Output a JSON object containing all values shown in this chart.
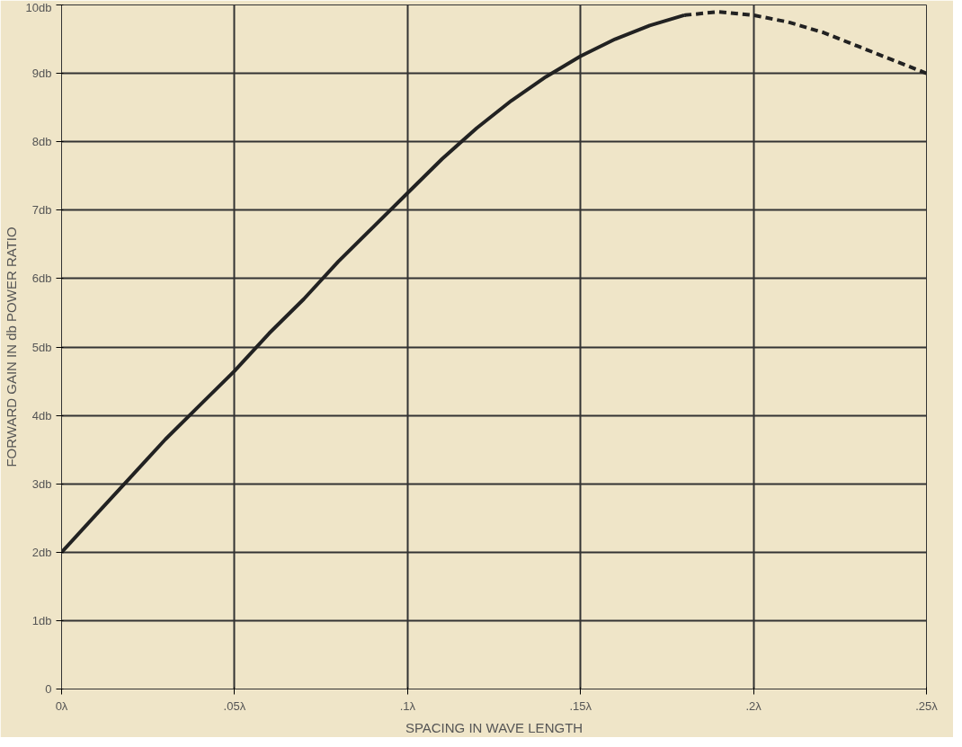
{
  "chart_data": {
    "type": "line",
    "xlabel": "SPACING IN WAVE LENGTH",
    "ylabel": "FORWARD GAIN IN db POWER RATIO",
    "xlim": [
      0,
      0.25
    ],
    "ylim": [
      0,
      10
    ],
    "xticks": [
      {
        "value": 0,
        "label": "0λ"
      },
      {
        "value": 0.05,
        "label": ".05λ"
      },
      {
        "value": 0.1,
        "label": ".1λ"
      },
      {
        "value": 0.15,
        "label": ".15λ"
      },
      {
        "value": 0.2,
        "label": ".2λ"
      },
      {
        "value": 0.25,
        "label": ".25λ"
      }
    ],
    "yticks": [
      0,
      {
        "value": 1,
        "label": "1db"
      },
      {
        "value": 2,
        "label": "2db"
      },
      {
        "value": 3,
        "label": "3db"
      },
      {
        "value": 4,
        "label": "4db"
      },
      {
        "value": 5,
        "label": "5db"
      },
      {
        "value": 6,
        "label": "6db"
      },
      {
        "value": 7,
        "label": "7db"
      },
      {
        "value": 8,
        "label": "8db"
      },
      {
        "value": 9,
        "label": "9db"
      },
      {
        "value": 10,
        "label": "10db"
      }
    ],
    "grid": true,
    "marker": "none",
    "series": [
      {
        "color": "#222222",
        "line_style": "solid",
        "x": [
          0,
          0.01,
          0.02,
          0.03,
          0.04,
          0.05,
          0.06,
          0.07,
          0.08,
          0.09,
          0.1,
          0.11,
          0.12,
          0.13,
          0.14,
          0.15,
          0.16,
          0.17,
          0.18
        ],
        "values": [
          2.0,
          2.55,
          3.1,
          3.65,
          4.15,
          4.65,
          5.2,
          5.7,
          6.25,
          6.75,
          7.25,
          7.75,
          8.2,
          8.6,
          8.95,
          9.25,
          9.5,
          9.7,
          9.85
        ]
      },
      {
        "color": "#222222",
        "line_style": "dashed",
        "x": [
          0.18,
          0.19,
          0.2,
          0.21,
          0.22,
          0.23,
          0.24,
          0.25
        ],
        "values": [
          9.85,
          9.9,
          9.85,
          9.75,
          9.6,
          9.4,
          9.2,
          9.0
        ]
      }
    ]
  }
}
